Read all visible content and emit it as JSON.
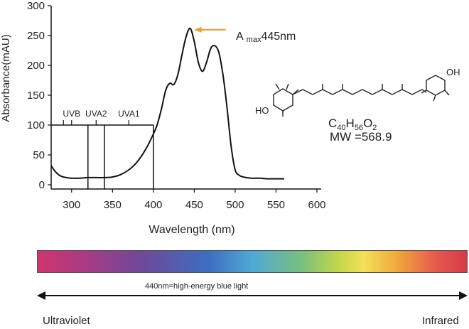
{
  "chart_data": {
    "type": "line",
    "title": "",
    "xlabel": "Wavelength (nm)",
    "ylabel": "Absorbance(mAU)",
    "xlim": [
      275,
      600
    ],
    "ylim": [
      0,
      300
    ],
    "x_ticks": [
      300,
      350,
      400,
      450,
      500,
      550,
      600
    ],
    "y_ticks": [
      0,
      50,
      100,
      150,
      200,
      250,
      300
    ],
    "grid": false,
    "series": [
      {
        "name": "",
        "x": [
          275,
          280,
          285,
          290,
          300,
          310,
          320,
          330,
          340,
          350,
          360,
          370,
          380,
          390,
          400,
          405,
          410,
          415,
          420,
          425,
          430,
          435,
          440,
          445,
          450,
          455,
          460,
          465,
          470,
          475,
          480,
          485,
          490,
          495,
          500,
          505,
          510,
          520,
          530,
          540,
          550,
          560
        ],
        "y": [
          32,
          22,
          16,
          13,
          11,
          11,
          12,
          12,
          12,
          13,
          17,
          25,
          38,
          58,
          85,
          102,
          128,
          158,
          170,
          168,
          185,
          218,
          248,
          262,
          240,
          205,
          190,
          205,
          228,
          233,
          222,
          185,
          130,
          65,
          25,
          16,
          13,
          11,
          11,
          10,
          10,
          10
        ]
      }
    ],
    "region_markers": [
      {
        "label": "UVB",
        "x": 290
      },
      {
        "label": "UVA2",
        "x": 320
      },
      {
        "label": "UVA1",
        "x": 340
      },
      {
        "label": "",
        "x": 400
      }
    ],
    "band_bracket": {
      "x_start": 275,
      "x_end": 400,
      "y": 100
    },
    "range_label_positions": {
      "UVB": 300,
      "UVA2": 330,
      "UVA1": 370
    },
    "annotation": {
      "prefix": "A",
      "subscript": "max",
      "value": "445nm",
      "x": 445,
      "y": 262
    },
    "molecule": {
      "formula_parts": [
        "C",
        "40",
        "H",
        "56",
        "O",
        "2"
      ],
      "mw": "MW =568.9",
      "label_left": "HO",
      "label_right": "OH"
    },
    "spectrum_bar": {
      "left_label": "Ultraviolet",
      "right_label": "Infrared",
      "arrow_caption": "440nm=high-energy blue light"
    }
  }
}
